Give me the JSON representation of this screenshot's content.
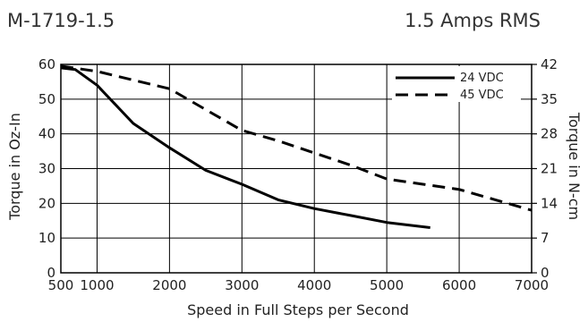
{
  "chart_data": {
    "type": "line",
    "title": "M-1719-1.5",
    "subtitle": "1.5 Amps RMS",
    "xlabel": "Speed in Full Steps per Second",
    "ylabel": "Torque in Oz-In",
    "y2label": "Torque in N-cm",
    "xlim": [
      500,
      7000
    ],
    "ylim": [
      0,
      60
    ],
    "x_ticks": [
      500,
      1000,
      2000,
      3000,
      4000,
      5000,
      6000,
      7000
    ],
    "x_tick_labels": [
      "500",
      "1000",
      "2000",
      "3000",
      "4000",
      "5000",
      "6000",
      "7000"
    ],
    "y_ticks": [
      0,
      10,
      20,
      30,
      40,
      50,
      60
    ],
    "y_tick_labels": [
      "0",
      "10",
      "20",
      "30",
      "40",
      "50",
      "60"
    ],
    "y2_ticks": [
      0,
      7,
      14,
      21,
      28,
      35,
      42
    ],
    "y2_tick_labels": [
      "0",
      "7",
      "14",
      "21",
      "28",
      "35",
      "42"
    ],
    "grid": true,
    "legend_position": "top-right",
    "series": [
      {
        "name": "24 VDC",
        "style": "solid",
        "color": "#000000",
        "x": [
          500,
          700,
          1000,
          1500,
          2000,
          2500,
          3000,
          3500,
          4000,
          4500,
          5000,
          5600
        ],
        "y": [
          59,
          58.5,
          54,
          43,
          36,
          29.5,
          25.5,
          21,
          18.5,
          16.5,
          14.5,
          13
        ]
      },
      {
        "name": "45 VDC",
        "style": "dashed",
        "color": "#000000",
        "x": [
          500,
          1000,
          1500,
          2000,
          2500,
          3000,
          3500,
          4000,
          4500,
          5000,
          5500,
          6000,
          6500,
          7000
        ],
        "y": [
          59.5,
          58,
          55.5,
          53,
          47,
          41,
          38,
          34.5,
          31,
          27,
          25.5,
          24,
          21,
          18
        ]
      }
    ]
  }
}
